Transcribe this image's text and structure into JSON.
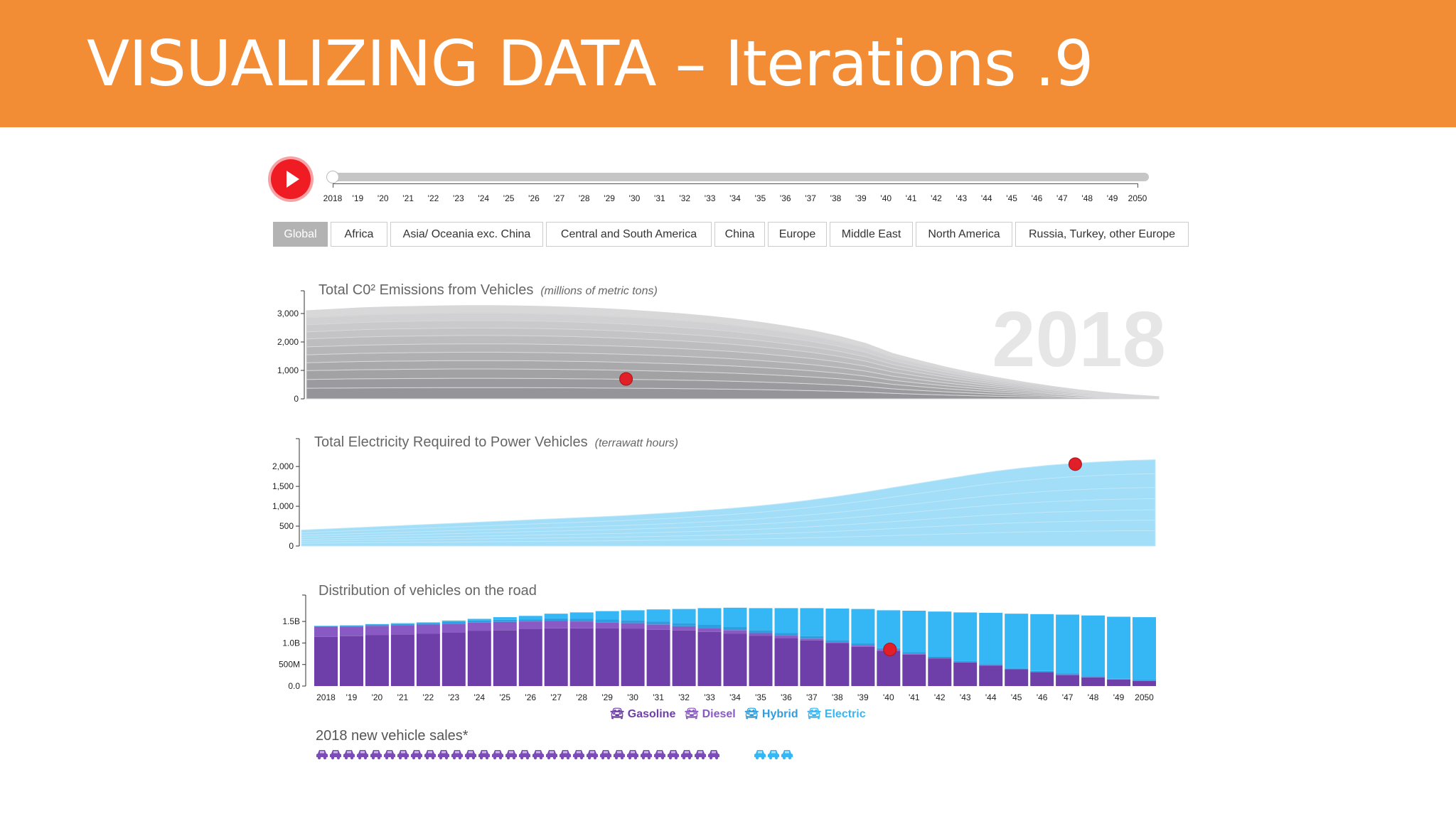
{
  "banner": {
    "title": "VISUALIZING DATA – Iterations .9"
  },
  "timeline": {
    "labels": [
      "2018",
      "'19",
      "'20",
      "'21",
      "'22",
      "'23",
      "'24",
      "'25",
      "'26",
      "'27",
      "'28",
      "'29",
      "'30",
      "'31",
      "'32",
      "'33",
      "'34",
      "'35",
      "'36",
      "'37",
      "'38",
      "'39",
      "'40",
      "'41",
      "'42",
      "'43",
      "'44",
      "'45",
      "'46",
      "'47",
      "'48",
      "'49",
      "2050"
    ],
    "current": 0
  },
  "regions": {
    "items": [
      "Global",
      "Africa",
      "Asia/ Oceania exc. China",
      "Central and South America",
      "China",
      "Europe",
      "Middle East",
      "North America",
      "Russia, Turkey, other Europe"
    ],
    "active": 0
  },
  "year_display": "2018",
  "colors": {
    "accent": "#f28d35",
    "marker": "#e01f28",
    "gasoline": "#6e3fa9",
    "diesel": "#8a5ac4",
    "hybrid": "#2d9fe0",
    "electric": "#35b7f5"
  },
  "chart_data": [
    {
      "type": "area",
      "title": "Total C0² Emissions from Vehicles",
      "subtitle": "(millions of metric tons)",
      "x": [
        2018,
        2019,
        2020,
        2021,
        2022,
        2023,
        2024,
        2025,
        2026,
        2027,
        2028,
        2029,
        2030,
        2031,
        2032,
        2033,
        2034,
        2035,
        2036,
        2037,
        2038,
        2039,
        2040,
        2041,
        2042,
        2043,
        2044,
        2045,
        2046,
        2047,
        2048,
        2049,
        2050
      ],
      "y_total": [
        3100,
        3150,
        3200,
        3230,
        3250,
        3270,
        3280,
        3280,
        3270,
        3250,
        3220,
        3180,
        3130,
        3070,
        3000,
        2920,
        2820,
        2700,
        2560,
        2400,
        2200,
        1950,
        1600,
        1350,
        1120,
        920,
        740,
        580,
        440,
        320,
        220,
        140,
        80
      ],
      "layer_fractions": [
        0.12,
        0.1,
        0.1,
        0.09,
        0.09,
        0.09,
        0.09,
        0.08,
        0.08,
        0.08,
        0.08
      ],
      "ylim": [
        0,
        3100
      ],
      "yticks": [
        0,
        1000,
        2000,
        3000
      ],
      "ytick_labels": [
        "0",
        "1,000",
        "2,000",
        "3,000"
      ],
      "marker": {
        "x": 2030,
        "y": 700
      }
    },
    {
      "type": "area",
      "title": "Total Electricity Required to Power Vehicles",
      "subtitle": "(terrawatt hours)",
      "x": [
        2018,
        2019,
        2020,
        2021,
        2022,
        2023,
        2024,
        2025,
        2026,
        2027,
        2028,
        2029,
        2030,
        2031,
        2032,
        2033,
        2034,
        2035,
        2036,
        2037,
        2038,
        2039,
        2040,
        2041,
        2042,
        2043,
        2044,
        2045,
        2046,
        2047,
        2048,
        2049,
        2050
      ],
      "y_total": [
        400,
        430,
        460,
        490,
        520,
        550,
        580,
        610,
        640,
        670,
        700,
        730,
        760,
        800,
        840,
        890,
        940,
        1000,
        1070,
        1150,
        1240,
        1340,
        1450,
        1560,
        1670,
        1780,
        1880,
        1960,
        2030,
        2080,
        2120,
        2150,
        2170
      ],
      "layer_fractions": [
        0.18,
        0.12,
        0.12,
        0.13,
        0.13,
        0.16,
        0.16
      ],
      "ylim": [
        0,
        2200
      ],
      "yticks": [
        0,
        500,
        1000,
        1500,
        2000
      ],
      "ytick_labels": [
        "0",
        "500",
        "1,000",
        "1,500",
        "2,000"
      ],
      "marker": {
        "x": 2047,
        "y": 2060
      }
    },
    {
      "type": "bar",
      "title": "Distribution of vehicles on the road",
      "categories": [
        "2018",
        "'19",
        "'20",
        "'21",
        "'22",
        "'23",
        "'24",
        "'25",
        "'26",
        "'27",
        "'28",
        "'29",
        "'30",
        "'31",
        "'32",
        "'33",
        "'34",
        "'35",
        "'36",
        "'37",
        "'38",
        "'39",
        "'40",
        "'41",
        "'42",
        "'43",
        "'44",
        "'45",
        "'46",
        "'47",
        "'48",
        "'49",
        "2050"
      ],
      "ylim": [
        0,
        1.75
      ],
      "yticks": [
        0,
        0.5,
        1.0,
        1.5
      ],
      "ytick_labels": [
        "0.0",
        "500M",
        "1.0B",
        "1.5B"
      ],
      "series": [
        {
          "name": "Gasoline",
          "values": [
            1.14,
            1.16,
            1.18,
            1.2,
            1.22,
            1.25,
            1.28,
            1.3,
            1.32,
            1.34,
            1.34,
            1.34,
            1.33,
            1.31,
            1.29,
            1.26,
            1.22,
            1.17,
            1.12,
            1.06,
            0.99,
            0.91,
            0.82,
            0.73,
            0.64,
            0.55,
            0.47,
            0.39,
            0.32,
            0.26,
            0.2,
            0.15,
            0.12
          ]
        },
        {
          "name": "Diesel",
          "values": [
            0.23,
            0.22,
            0.22,
            0.21,
            0.21,
            0.2,
            0.2,
            0.19,
            0.18,
            0.17,
            0.16,
            0.14,
            0.13,
            0.12,
            0.1,
            0.09,
            0.08,
            0.06,
            0.05,
            0.04,
            0.03,
            0.03,
            0.02,
            0.02,
            0.02,
            0.01,
            0.01,
            0.01,
            0.01,
            0.01,
            0.01,
            0.01,
            0.01
          ]
        },
        {
          "name": "Hybrid",
          "values": [
            0.02,
            0.02,
            0.03,
            0.03,
            0.03,
            0.04,
            0.04,
            0.05,
            0.05,
            0.06,
            0.06,
            0.07,
            0.07,
            0.07,
            0.07,
            0.07,
            0.07,
            0.07,
            0.06,
            0.06,
            0.05,
            0.05,
            0.04,
            0.04,
            0.03,
            0.03,
            0.03,
            0.02,
            0.02,
            0.02,
            0.02,
            0.01,
            0.01
          ]
        },
        {
          "name": "Electric",
          "values": [
            0.01,
            0.01,
            0.01,
            0.02,
            0.02,
            0.03,
            0.04,
            0.06,
            0.08,
            0.11,
            0.15,
            0.19,
            0.23,
            0.28,
            0.33,
            0.39,
            0.45,
            0.51,
            0.58,
            0.65,
            0.73,
            0.8,
            0.88,
            0.96,
            1.04,
            1.12,
            1.19,
            1.26,
            1.32,
            1.37,
            1.41,
            1.44,
            1.46
          ]
        }
      ],
      "marker": {
        "x": "'40",
        "y": 0.85
      }
    }
  ],
  "legend": {
    "gasoline": "Gasoline",
    "diesel": "Diesel",
    "hybrid": "Hybrid",
    "electric": "Electric"
  },
  "sales": {
    "title": "2018 new vehicle sales*",
    "gasoline_count": 30,
    "electric_count": 3
  }
}
